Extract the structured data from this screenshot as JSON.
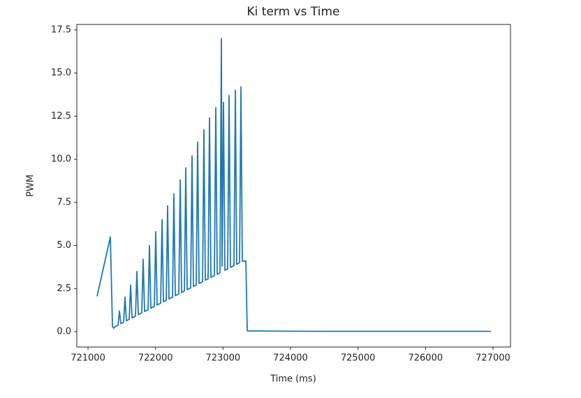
{
  "chart_data": {
    "type": "line",
    "title": "Ki term vs Time",
    "x_label": "Time (ms)",
    "y_label": "PWM",
    "series": [
      {
        "name": "Ki term",
        "color": "#1f77b4",
        "x": [
          721134,
          721331,
          721362,
          721383,
          721403,
          721445,
          721466,
          721486,
          721528,
          721548,
          721569,
          721610,
          721631,
          721652,
          721703,
          721724,
          721745,
          721796,
          721817,
          721838,
          721890,
          721910,
          721931,
          721983,
          722003,
          722024,
          722076,
          722097,
          722117,
          722159,
          722179,
          722200,
          722252,
          722272,
          722293,
          722345,
          722366,
          722386,
          722428,
          722448,
          722469,
          722521,
          722541,
          722562,
          722603,
          722624,
          722645,
          722697,
          722717,
          722738,
          722779,
          722800,
          722821,
          722872,
          722893,
          722914,
          722955,
          722976,
          722986,
          723007,
          723028,
          723069,
          723090,
          723110,
          723162,
          723183,
          723203,
          723245,
          723266,
          723286,
          723338,
          723359,
          723800,
          724500,
          726969
        ],
        "values": [
          2.05,
          5.5,
          0.3,
          0.2,
          0.3,
          0.38,
          1.2,
          0.47,
          0.55,
          2.0,
          0.63,
          0.72,
          2.7,
          0.8,
          0.9,
          3.5,
          0.99,
          1.09,
          4.2,
          1.17,
          1.28,
          5.0,
          1.36,
          1.46,
          5.8,
          1.55,
          1.65,
          6.5,
          1.74,
          1.82,
          7.3,
          1.9,
          2.0,
          8.0,
          2.09,
          2.19,
          8.8,
          2.27,
          2.36,
          9.5,
          2.44,
          2.54,
          10.2,
          2.63,
          2.71,
          11.0,
          2.8,
          2.9,
          11.7,
          2.99,
          3.06,
          12.4,
          3.15,
          3.25,
          13.0,
          3.33,
          3.42,
          17.0,
          3.8,
          13.3,
          3.56,
          3.64,
          13.7,
          3.73,
          3.83,
          14.0,
          3.91,
          4.0,
          14.2,
          4.08,
          4.1,
          0.05,
          0.03,
          0.02,
          0.02
        ]
      }
    ],
    "xlim": [
      720834,
      727259
    ],
    "ylim": [
      -0.89,
      17.82
    ],
    "xticks": [
      721000,
      722000,
      723000,
      724000,
      725000,
      726000,
      727000
    ],
    "yticks": [
      {
        "value": 0,
        "label": "0.0"
      },
      2.5,
      {
        "value": 5,
        "label": "5.0"
      },
      7.5,
      {
        "value": 10,
        "label": "10.0"
      },
      12.5,
      {
        "value": 15,
        "label": "15.0"
      },
      17.5
    ],
    "grid": false
  }
}
